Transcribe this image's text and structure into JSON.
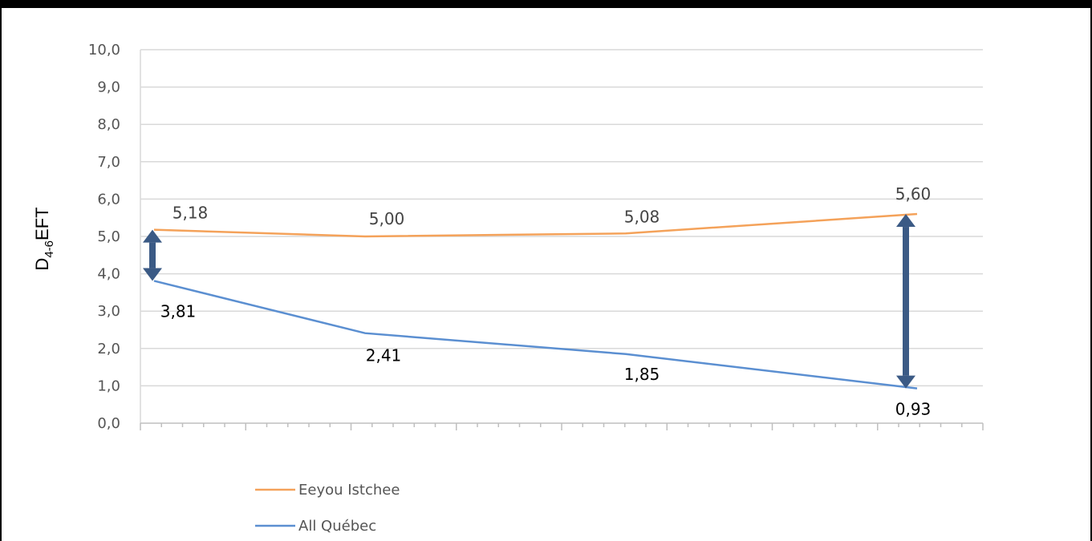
{
  "chart_data": {
    "type": "line",
    "x": [
      1,
      2,
      3,
      4
    ],
    "ylim": [
      0,
      10
    ],
    "yticks": [
      "0,0",
      "1,0",
      "2,0",
      "3,0",
      "4,0",
      "5,0",
      "6,0",
      "7,0",
      "8,0",
      "9,0",
      "10,0"
    ],
    "ylabel": {
      "main": "D",
      "sub": "4-6",
      "rest": "EFT"
    },
    "grid": true,
    "legend": "bottom-left",
    "series": [
      {
        "name": "Eeyou Istchee",
        "color": "#f4a25a",
        "values": [
          5.18,
          5.0,
          5.08,
          5.6
        ],
        "labels": [
          "5,18",
          "5,00",
          "5,08",
          "5,60"
        ],
        "label_color": "#444444"
      },
      {
        "name": "All Québec",
        "color": "#5b8fd1",
        "values": [
          3.81,
          2.41,
          1.85,
          0.93
        ],
        "labels": [
          "3,81",
          "2,41",
          "1,85",
          "0,93"
        ],
        "label_color": "#000000"
      }
    ],
    "gap_arrows": [
      {
        "x": 1,
        "from": 3.81,
        "to": 5.18,
        "color": "#3b5a85"
      },
      {
        "x": 4,
        "from": 0.93,
        "to": 5.6,
        "color": "#3b5a85"
      }
    ]
  }
}
